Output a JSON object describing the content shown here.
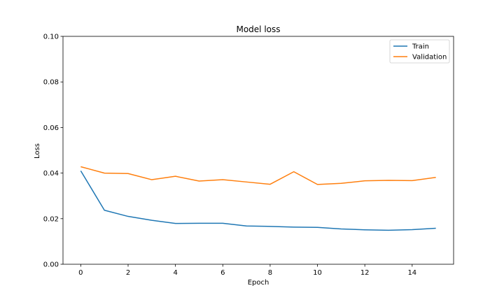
{
  "chart_data": {
    "type": "line",
    "title": "Model loss",
    "xlabel": "Epoch",
    "ylabel": "Loss",
    "x": [
      0,
      1,
      2,
      3,
      4,
      5,
      6,
      7,
      8,
      9,
      10,
      11,
      12,
      13,
      14,
      15
    ],
    "xlim": [
      -0.75,
      15.75
    ],
    "ylim": [
      0,
      0.1
    ],
    "xticks": [
      0,
      2,
      4,
      6,
      8,
      10,
      12,
      14
    ],
    "xtick_labels": [
      "0",
      "2",
      "4",
      "6",
      "8",
      "10",
      "12",
      "14"
    ],
    "yticks": [
      0,
      0.02,
      0.04,
      0.06,
      0.08,
      0.1
    ],
    "ytick_labels": [
      "0.00",
      "0.02",
      "0.04",
      "0.06",
      "0.08",
      "0.10"
    ],
    "grid": false,
    "legend_position": "top-right",
    "series": [
      {
        "name": "Train",
        "color": "#1f77b4",
        "values": [
          0.041,
          0.0237,
          0.021,
          0.0193,
          0.0179,
          0.018,
          0.018,
          0.0168,
          0.0166,
          0.0163,
          0.0162,
          0.0155,
          0.0151,
          0.0149,
          0.0152,
          0.0158
        ]
      },
      {
        "name": "Validation",
        "color": "#ff7f0e",
        "values": [
          0.0428,
          0.04,
          0.0398,
          0.0371,
          0.0386,
          0.0365,
          0.0371,
          0.0361,
          0.0351,
          0.0406,
          0.035,
          0.0355,
          0.0366,
          0.0368,
          0.0367,
          0.0381
        ]
      }
    ]
  }
}
